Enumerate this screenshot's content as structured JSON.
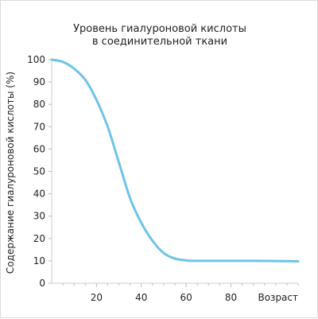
{
  "chart_data": {
    "type": "line",
    "title_line1": "Уровень гиалуроновой кислоты",
    "title_line2": "в соединительной ткани",
    "xlabel": "Возраст",
    "ylabel": "Содержание гиалуроновой кислоты (%)",
    "xlim": [
      0,
      110
    ],
    "ylim": [
      0,
      100
    ],
    "x_ticks": [
      20,
      40,
      60,
      80
    ],
    "x_tick_labels": [
      "20",
      "40",
      "60",
      "80"
    ],
    "y_ticks": [
      0,
      10,
      20,
      30,
      40,
      50,
      60,
      70,
      80,
      90,
      100
    ],
    "y_tick_labels": [
      "0",
      "10",
      "20",
      "30",
      "40",
      "50",
      "60",
      "70",
      "80",
      "90",
      "100"
    ],
    "grid": false,
    "series": [
      {
        "color": "#6ec4ea",
        "x": [
          0,
          5,
          10,
          15,
          20,
          25,
          30,
          35,
          40,
          45,
          50,
          55,
          60,
          63,
          65,
          70,
          80,
          90,
          100,
          110
        ],
        "values": [
          100,
          99,
          96,
          91,
          82,
          70,
          54,
          38,
          27,
          19,
          13.5,
          11,
          10.2,
          10,
          10,
          10,
          10,
          10,
          9.9,
          9.8
        ]
      }
    ]
  }
}
